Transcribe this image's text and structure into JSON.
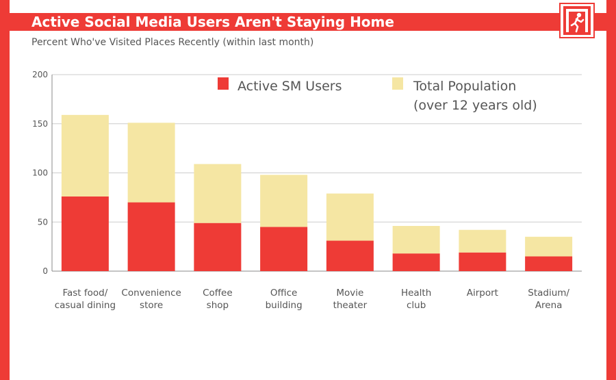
{
  "title": "Active Social Media Users Aren't Staying Home",
  "subtitle": "Percent Who've Visited Places Recently (within last month)",
  "logo": {
    "icon": "exit-runner-icon"
  },
  "colors": {
    "accent": "#ee3b36",
    "active": "#ee3b36",
    "total": "#f5e6a3",
    "grid": "#cccccc",
    "text": "#555555"
  },
  "chart_data": {
    "type": "bar",
    "stacked": true,
    "ylim": [
      0,
      200
    ],
    "yticks": [
      0,
      50,
      100,
      150,
      200
    ],
    "grid": true,
    "legend_placement": "top-right",
    "categories": [
      [
        "Fast food/",
        "casual dining"
      ],
      [
        "Convenience",
        "store"
      ],
      [
        "Coffee",
        "shop"
      ],
      [
        "Office",
        "building"
      ],
      [
        "Movie",
        "theater"
      ],
      [
        "Health",
        "club"
      ],
      [
        "Airport"
      ],
      [
        "Stadium/",
        "Arena"
      ]
    ],
    "series": [
      {
        "name": "Active SM Users",
        "values": [
          76,
          70,
          49,
          45,
          31,
          18,
          19,
          15
        ]
      },
      {
        "name": [
          "Total Population",
          "(over 12 years old)"
        ],
        "values": [
          83,
          81,
          60,
          53,
          48,
          28,
          23,
          20
        ]
      }
    ]
  }
}
